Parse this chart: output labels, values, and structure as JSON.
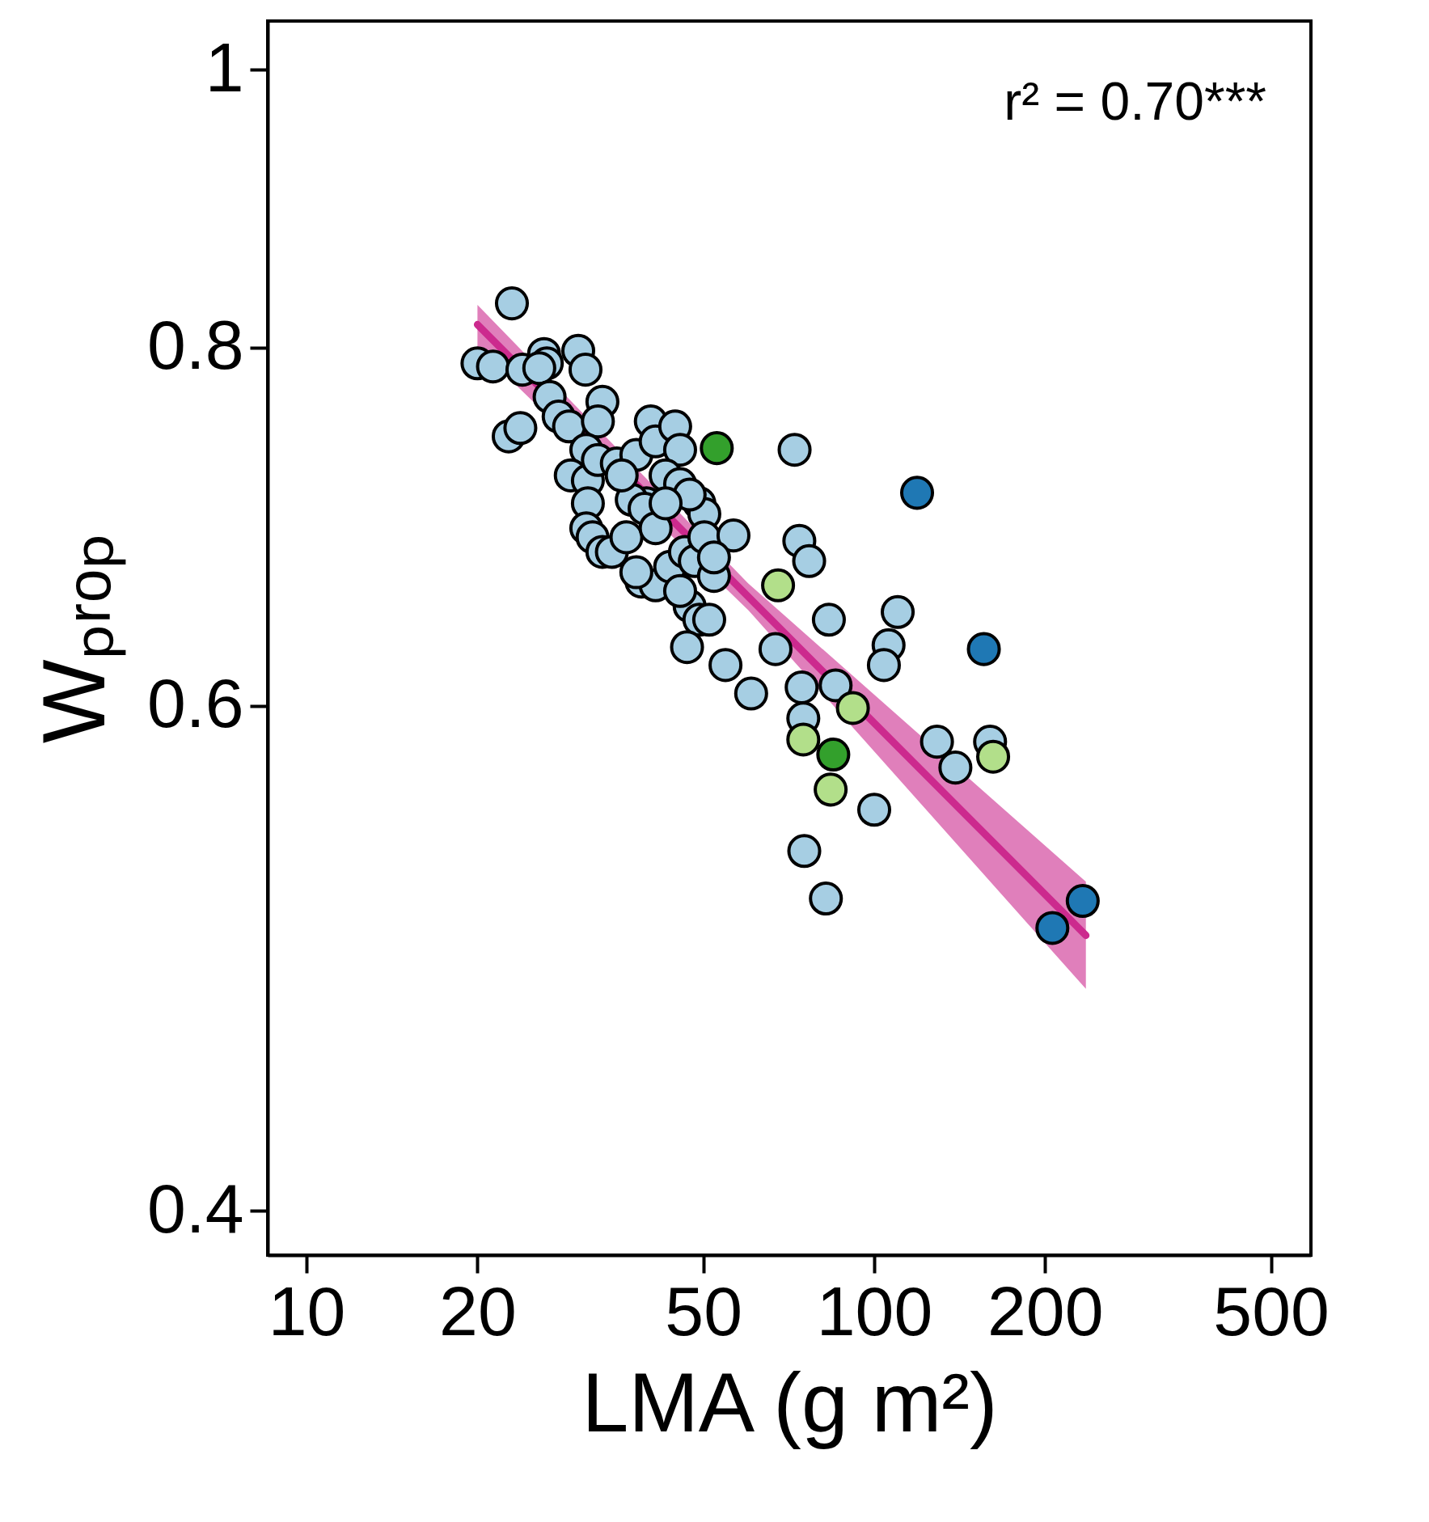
{
  "chart_data": {
    "type": "scatter",
    "xlabel": "LMA (g m²)",
    "ylabel": "Wₚᵣₒₚ",
    "log": "xy",
    "grid": false,
    "marker": "circle",
    "xlim": [
      8.54,
      588
    ],
    "ylim": [
      0.386,
      1.04
    ],
    "xticks": [
      10,
      20,
      50,
      100,
      200,
      500
    ],
    "yticks": [
      0.4,
      0.6,
      0.8,
      1
    ],
    "annotations": [
      "r² = 0.70***"
    ],
    "series": [
      {
        "type": "line",
        "marker": "none",
        "line_style": "solid",
        "color": "#cc2a8e",
        "x": [
          20,
          60,
          236
        ],
        "values": [
          0.815,
          0.655,
          0.499
        ],
        "lower": [
          0.8,
          0.648,
          0.478
        ],
        "upper": [
          0.828,
          0.662,
          0.521
        ]
      },
      {
        "color": "#a6cee3",
        "x": [
          23.0,
          20,
          21.3,
          24.0,
          26.2,
          26.5,
          30.1,
          31.0,
          25.7,
          22.7,
          23.8,
          26.8,
          27.8,
          29.0,
          33.2,
          32.6,
          31.1,
          29.2,
          31.3,
          32.6,
          35.2,
          38.1,
          40.4,
          41.2,
          44.6,
          45.5,
          42.9,
          45.5,
          49.2,
          50.2,
          47.3,
          39.7,
          37.4,
          39.4,
          31.3,
          31.1,
          31.9,
          33.2,
          34.5,
          36.6,
          38.9,
          41.2,
          43.7,
          46.4,
          48.3,
          50.2,
          52.2,
          56.5,
          47.3,
          49.2,
          51.2,
          46.8,
          54.7,
          60.7,
          67.0,
          72.4,
          73.8,
          76.8,
          83.2,
          74.5,
          75.0,
          85.5,
          110,
          106,
          104,
          100,
          129,
          139,
          160,
          75.3,
          82.2,
          41.2,
          38.1,
          45.5,
          52.2,
          35.9,
          42.9
        ],
        "values": [
          0.829,
          0.79,
          0.788,
          0.786,
          0.796,
          0.79,
          0.798,
          0.786,
          0.787,
          0.745,
          0.75,
          0.769,
          0.757,
          0.751,
          0.766,
          0.754,
          0.737,
          0.722,
          0.719,
          0.731,
          0.729,
          0.734,
          0.754,
          0.742,
          0.751,
          0.737,
          0.722,
          0.717,
          0.706,
          0.7,
          0.711,
          0.706,
          0.708,
          0.703,
          0.706,
          0.692,
          0.687,
          0.679,
          0.679,
          0.687,
          0.663,
          0.661,
          0.671,
          0.679,
          0.674,
          0.687,
          0.666,
          0.688,
          0.65,
          0.643,
          0.643,
          0.629,
          0.62,
          0.606,
          0.628,
          0.737,
          0.685,
          0.674,
          0.643,
          0.609,
          0.594,
          0.61,
          0.647,
          0.63,
          0.62,
          0.552,
          0.583,
          0.571,
          0.583,
          0.534,
          0.514,
          0.692,
          0.668,
          0.658,
          0.676,
          0.722,
          0.706
        ]
      },
      {
        "color": "#b2df8a",
        "x": [
          67.7,
          91.7,
          75.0,
          83.8,
          162
        ],
        "values": [
          0.661,
          0.599,
          0.584,
          0.561,
          0.576
        ]
      },
      {
        "color": "#33a02c",
        "x": [
          52.8,
          84.7
        ],
        "values": [
          0.738,
          0.577
        ]
      },
      {
        "color": "#1f78b4",
        "x": [
          119,
          156,
          206,
          233
        ],
        "values": [
          0.712,
          0.628,
          0.502,
          0.513
        ]
      }
    ]
  }
}
